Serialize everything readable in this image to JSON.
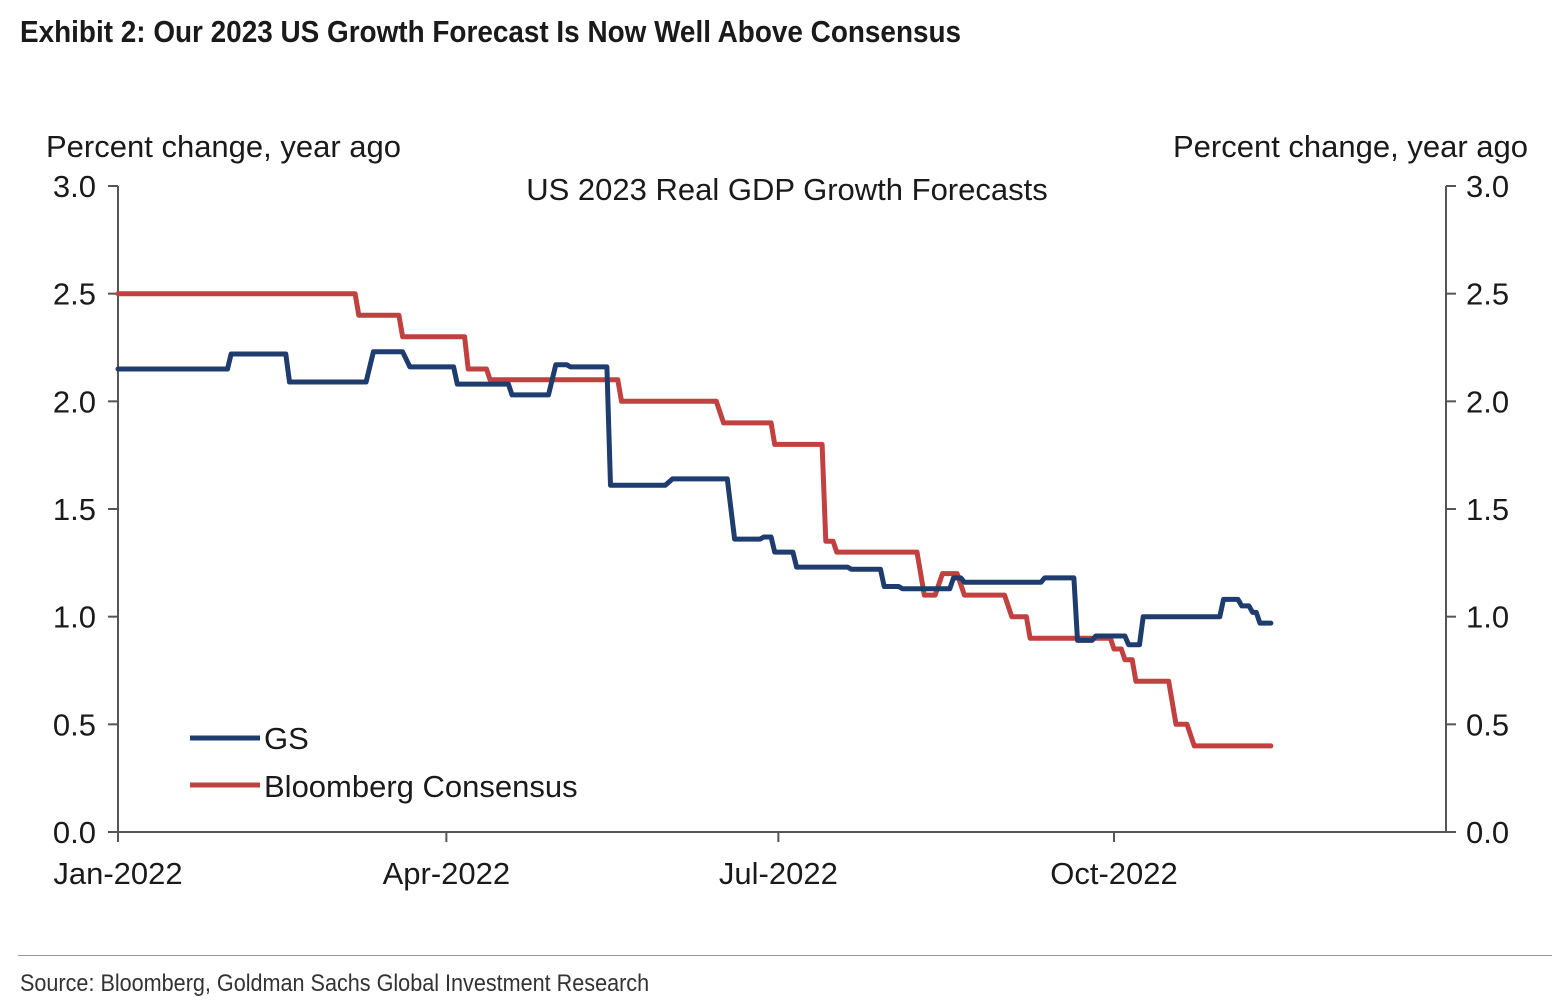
{
  "exhibit_title": "Exhibit 2: Our 2023 US Growth Forecast Is Now Well Above Consensus",
  "source": "Source: Bloomberg, Goldman Sachs Global Investment Research",
  "colors": {
    "gs": "#1f3c6e",
    "consensus": "#c0413f",
    "axis": "#555555",
    "text": "#1a1a1a"
  },
  "chart_data": {
    "type": "line",
    "title": "US 2023 Real GDP Growth Forecasts",
    "ylabel_left": "Percent change, year ago",
    "ylabel_right": "Percent change, year ago",
    "ylim": [
      0,
      3
    ],
    "yticks": [
      "0.0",
      "0.5",
      "1.0",
      "1.5",
      "2.0",
      "2.5",
      "3.0"
    ],
    "xlim": [
      "2022-01-01",
      "2022-12-31"
    ],
    "xticks": [
      {
        "date": "2022-01-01",
        "label": "Jan-2022"
      },
      {
        "date": "2022-04-01",
        "label": "Apr-2022"
      },
      {
        "date": "2022-07-01",
        "label": "Jul-2022"
      },
      {
        "date": "2022-10-01",
        "label": "Oct-2022"
      }
    ],
    "grid": false,
    "legend_position": "bottom-left",
    "series": [
      {
        "name": "GS",
        "color": "#1f3c6e",
        "points": [
          [
            "2022-01-01",
            2.15
          ],
          [
            "2022-01-31",
            2.15
          ],
          [
            "2022-02-01",
            2.22
          ],
          [
            "2022-02-16",
            2.22
          ],
          [
            "2022-02-17",
            2.09
          ],
          [
            "2022-03-10",
            2.09
          ],
          [
            "2022-03-12",
            2.23
          ],
          [
            "2022-03-20",
            2.23
          ],
          [
            "2022-03-22",
            2.16
          ],
          [
            "2022-04-03",
            2.16
          ],
          [
            "2022-04-04",
            2.08
          ],
          [
            "2022-04-18",
            2.08
          ],
          [
            "2022-04-19",
            2.03
          ],
          [
            "2022-04-29",
            2.03
          ],
          [
            "2022-05-01",
            2.17
          ],
          [
            "2022-05-04",
            2.17
          ],
          [
            "2022-05-05",
            2.16
          ],
          [
            "2022-05-15",
            2.16
          ],
          [
            "2022-05-16",
            1.61
          ],
          [
            "2022-05-31",
            1.61
          ],
          [
            "2022-06-02",
            1.64
          ],
          [
            "2022-06-17",
            1.64
          ],
          [
            "2022-06-19",
            1.36
          ],
          [
            "2022-06-26",
            1.36
          ],
          [
            "2022-06-27",
            1.37
          ],
          [
            "2022-06-29",
            1.37
          ],
          [
            "2022-06-30",
            1.3
          ],
          [
            "2022-07-05",
            1.3
          ],
          [
            "2022-07-06",
            1.23
          ],
          [
            "2022-07-20",
            1.23
          ],
          [
            "2022-07-21",
            1.22
          ],
          [
            "2022-07-29",
            1.22
          ],
          [
            "2022-07-30",
            1.14
          ],
          [
            "2022-08-03",
            1.14
          ],
          [
            "2022-08-04",
            1.13
          ],
          [
            "2022-08-17",
            1.13
          ],
          [
            "2022-08-18",
            1.18
          ],
          [
            "2022-08-20",
            1.18
          ],
          [
            "2022-08-21",
            1.16
          ],
          [
            "2022-09-11",
            1.16
          ],
          [
            "2022-09-12",
            1.18
          ],
          [
            "2022-09-20",
            1.18
          ],
          [
            "2022-09-21",
            0.89
          ],
          [
            "2022-09-25",
            0.89
          ],
          [
            "2022-09-26",
            0.91
          ],
          [
            "2022-10-04",
            0.91
          ],
          [
            "2022-10-05",
            0.87
          ],
          [
            "2022-10-08",
            0.87
          ],
          [
            "2022-10-09",
            1.0
          ],
          [
            "2022-10-30",
            1.0
          ],
          [
            "2022-10-31",
            1.08
          ],
          [
            "2022-11-04",
            1.08
          ],
          [
            "2022-11-05",
            1.05
          ],
          [
            "2022-11-07",
            1.05
          ],
          [
            "2022-11-08",
            1.02
          ],
          [
            "2022-11-09",
            1.02
          ],
          [
            "2022-11-10",
            0.97
          ],
          [
            "2022-11-13",
            0.97
          ]
        ]
      },
      {
        "name": "Bloomberg Consensus",
        "color": "#c0413f",
        "points": [
          [
            "2022-01-01",
            2.5
          ],
          [
            "2022-03-07",
            2.5
          ],
          [
            "2022-03-08",
            2.4
          ],
          [
            "2022-03-19",
            2.4
          ],
          [
            "2022-03-20",
            2.3
          ],
          [
            "2022-04-06",
            2.3
          ],
          [
            "2022-04-07",
            2.15
          ],
          [
            "2022-04-12",
            2.15
          ],
          [
            "2022-04-13",
            2.1
          ],
          [
            "2022-05-18",
            2.1
          ],
          [
            "2022-05-19",
            2.0
          ],
          [
            "2022-06-14",
            2.0
          ],
          [
            "2022-06-16",
            1.9
          ],
          [
            "2022-06-29",
            1.9
          ],
          [
            "2022-06-30",
            1.8
          ],
          [
            "2022-07-13",
            1.8
          ],
          [
            "2022-07-14",
            1.35
          ],
          [
            "2022-07-16",
            1.35
          ],
          [
            "2022-07-17",
            1.3
          ],
          [
            "2022-08-08",
            1.3
          ],
          [
            "2022-08-10",
            1.1
          ],
          [
            "2022-08-13",
            1.1
          ],
          [
            "2022-08-15",
            1.2
          ],
          [
            "2022-08-19",
            1.2
          ],
          [
            "2022-08-21",
            1.1
          ],
          [
            "2022-09-01",
            1.1
          ],
          [
            "2022-09-03",
            1.0
          ],
          [
            "2022-09-07",
            1.0
          ],
          [
            "2022-09-08",
            0.9
          ],
          [
            "2022-09-30",
            0.9
          ],
          [
            "2022-10-01",
            0.85
          ],
          [
            "2022-10-03",
            0.85
          ],
          [
            "2022-10-04",
            0.8
          ],
          [
            "2022-10-06",
            0.8
          ],
          [
            "2022-10-07",
            0.7
          ],
          [
            "2022-10-16",
            0.7
          ],
          [
            "2022-10-18",
            0.5
          ],
          [
            "2022-10-21",
            0.5
          ],
          [
            "2022-10-23",
            0.4
          ],
          [
            "2022-11-13",
            0.4
          ]
        ]
      }
    ]
  }
}
